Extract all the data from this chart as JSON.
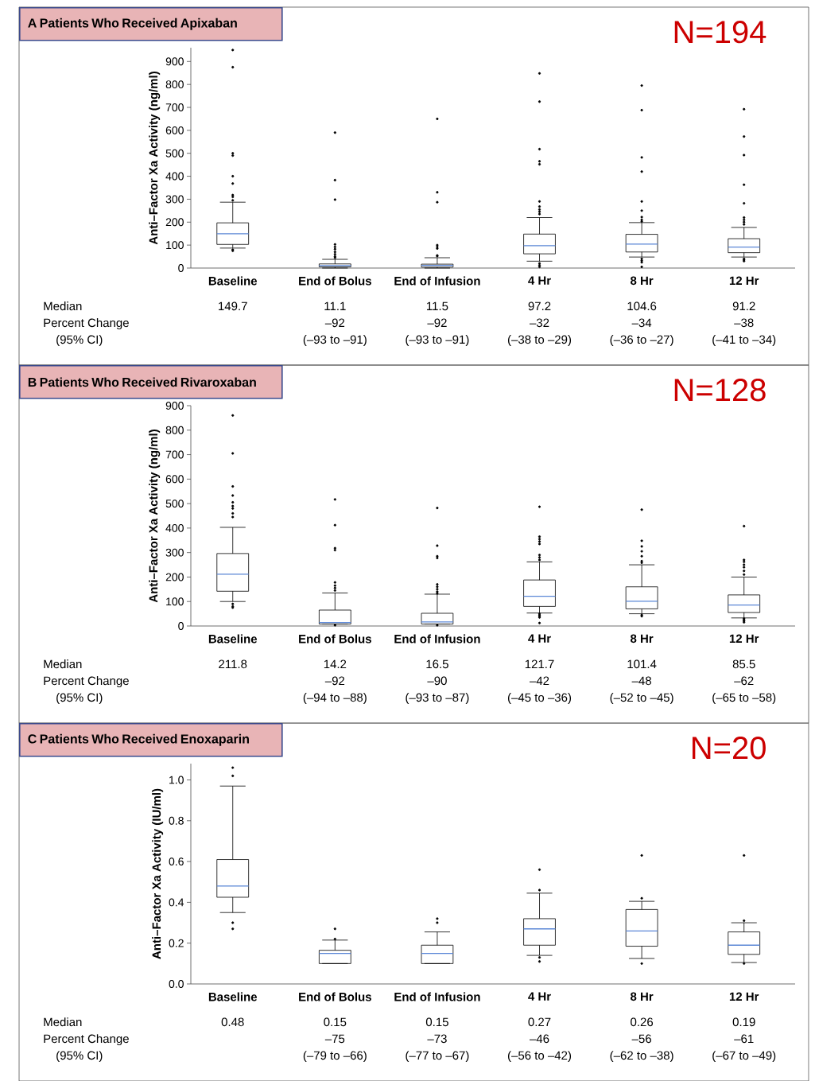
{
  "chart_data": [
    {
      "type": "box",
      "title": "A  Patients Who Received Apixaban",
      "ylabel": "Anti–Factor Xa Activity (ng/ml)",
      "categories": [
        "Baseline",
        "End of Bolus",
        "End of Infusion",
        "4 Hr",
        "8 Hr",
        "12 Hr"
      ],
      "ylim": [
        0,
        960
      ],
      "yticks": [
        0,
        100,
        200,
        300,
        400,
        500,
        600,
        700,
        800,
        900
      ],
      "marker": "circle",
      "series": [
        {
          "color": "#000000",
          "boxes": [
            {
              "low": 87,
              "q1": 103,
              "median": 149.7,
              "q3": 197,
              "high": 287,
              "outliers": [
                950,
                875,
                500,
                490,
                400,
                368,
                318,
                310,
                295,
                80,
                75
              ]
            },
            {
              "low": 0,
              "q1": 5,
              "median": 11.1,
              "q3": 18,
              "high": 38,
              "outliers": [
                590,
                383,
                298,
                103,
                92,
                82,
                70,
                60,
                50,
                45
              ]
            },
            {
              "low": 0,
              "q1": 4,
              "median": 11.5,
              "q3": 17,
              "high": 45,
              "outliers": [
                650,
                330,
                287,
                100,
                92,
                85,
                55,
                52
              ]
            },
            {
              "low": 30,
              "q1": 62,
              "median": 97.2,
              "q3": 148,
              "high": 220,
              "outliers": [
                848,
                725,
                518,
                465,
                452,
                290,
                268,
                255,
                245,
                235,
                20,
                12,
                5
              ]
            },
            {
              "low": 48,
              "q1": 70,
              "median": 104.6,
              "q3": 147,
              "high": 198,
              "outliers": [
                795,
                688,
                482,
                420,
                290,
                250,
                222,
                210,
                203,
                40,
                32,
                25,
                5
              ]
            },
            {
              "low": 48,
              "q1": 67,
              "median": 91.2,
              "q3": 128,
              "high": 177,
              "outliers": [
                692,
                573,
                492,
                363,
                282,
                220,
                210,
                200,
                190,
                40,
                35,
                30
              ]
            }
          ]
        }
      ],
      "annotations": [
        "N=194",
        "Median",
        "Percent Change",
        "(95% CI)",
        "149.7",
        "11.1",
        "–92",
        "(–93 to –91)",
        "11.5",
        "–92",
        "(–93 to –91)",
        "97.2",
        "–32",
        "(–38 to –29)",
        "104.6",
        "–34",
        "(–36 to –27)",
        "91.2",
        "–38",
        "(–41 to –34)"
      ]
    },
    {
      "type": "box",
      "title": "B  Patients Who Received Rivaroxaban",
      "ylabel": "Anti–Factor Xa Activity (ng/ml)",
      "categories": [
        "Baseline",
        "End of Bolus",
        "End of Infusion",
        "4 Hr",
        "8 Hr",
        "12 Hr"
      ],
      "ylim": [
        0,
        900
      ],
      "yticks": [
        0,
        100,
        200,
        300,
        400,
        500,
        600,
        700,
        800,
        900
      ],
      "marker": "circle",
      "series": [
        {
          "color": "#000000",
          "boxes": [
            {
              "low": 100,
              "q1": 142,
              "median": 211.8,
              "q3": 296,
              "high": 403,
              "outliers": [
                860,
                705,
                570,
                533,
                505,
                490,
                480,
                460,
                445,
                90,
                80,
                75
              ]
            },
            {
              "low": 8,
              "q1": 8,
              "median": 14.2,
              "q3": 65,
              "high": 135,
              "outliers": [
                517,
                412,
                318,
                310,
                178,
                165,
                155,
                145,
                3
              ]
            },
            {
              "low": 8,
              "q1": 8,
              "median": 16.5,
              "q3": 52,
              "high": 130,
              "outliers": [
                482,
                328,
                285,
                278,
                170,
                160,
                150,
                140,
                133,
                3
              ]
            },
            {
              "low": 53,
              "q1": 80,
              "median": 121.7,
              "q3": 188,
              "high": 262,
              "outliers": [
                487,
                365,
                355,
                345,
                335,
                290,
                280,
                270,
                50,
                45,
                40,
                35,
                12
              ]
            },
            {
              "low": 50,
              "q1": 70,
              "median": 101.4,
              "q3": 160,
              "high": 250,
              "outliers": [
                475,
                348,
                325,
                305,
                285,
                265,
                258,
                45,
                40
              ]
            },
            {
              "low": 33,
              "q1": 55,
              "median": 85.5,
              "q3": 127,
              "high": 200,
              "outliers": [
                408,
                270,
                262,
                250,
                240,
                225,
                210,
                30,
                25,
                20,
                15
              ]
            }
          ]
        }
      ],
      "annotations": [
        "N=128",
        "Median",
        "Percent Change",
        "(95% CI)",
        "211.8",
        "14.2",
        "–92",
        "(–94 to –88)",
        "16.5",
        "–90",
        "(–93 to –87)",
        "121.7",
        "–42",
        "(–45 to –36)",
        "101.4",
        "–48",
        "(–52 to –45)",
        "85.5",
        "–62",
        "(–65 to –58)"
      ]
    },
    {
      "type": "box",
      "title": "C  Patients Who Received Enoxaparin",
      "ylabel": "Anti–Factor Xa Activity (IU/ml)",
      "categories": [
        "Baseline",
        "End of Bolus",
        "End of Infusion",
        "4 Hr",
        "8 Hr",
        "12 Hr"
      ],
      "ylim": [
        0,
        1.08
      ],
      "yticks": [
        {
          "value": 0,
          "label": "0.0"
        },
        {
          "value": 0.2,
          "label": "0.2"
        },
        {
          "value": 0.4,
          "label": "0.4"
        },
        {
          "value": 0.6,
          "label": "0.6"
        },
        {
          "value": 0.8,
          "label": "0.8"
        },
        {
          "value": 1.0,
          "label": "1.0"
        }
      ],
      "marker": "circle",
      "series": [
        {
          "color": "#000000",
          "boxes": [
            {
              "low": 0.35,
              "q1": 0.425,
              "median": 0.48,
              "q3": 0.61,
              "high": 0.97,
              "outliers": [
                1.06,
                1.02,
                0.3,
                0.27
              ]
            },
            {
              "low": 0.1,
              "q1": 0.1,
              "median": 0.15,
              "q3": 0.165,
              "high": 0.215,
              "outliers": [
                0.27,
                0.22
              ]
            },
            {
              "low": 0.1,
              "q1": 0.1,
              "median": 0.15,
              "q3": 0.19,
              "high": 0.255,
              "outliers": [
                0.32,
                0.3
              ]
            },
            {
              "low": 0.14,
              "q1": 0.19,
              "median": 0.27,
              "q3": 0.32,
              "high": 0.445,
              "outliers": [
                0.56,
                0.46,
                0.13,
                0.11
              ]
            },
            {
              "low": 0.125,
              "q1": 0.185,
              "median": 0.26,
              "q3": 0.365,
              "high": 0.405,
              "outliers": [
                0.63,
                0.42,
                0.1
              ]
            },
            {
              "low": 0.105,
              "q1": 0.145,
              "median": 0.19,
              "q3": 0.255,
              "high": 0.3,
              "outliers": [
                0.63,
                0.31,
                0.1
              ]
            }
          ]
        }
      ],
      "annotations": [
        "N=20",
        "Median",
        "Percent Change",
        "(95% CI)",
        "0.48",
        "0.15",
        "–75",
        "(–79 to –66)",
        "0.15",
        "–73",
        "(–77 to –67)",
        "0.27",
        "–46",
        "(–56 to –42)",
        "0.26",
        "–56",
        "(–62 to –38)",
        "0.19",
        "–61",
        "(–67 to –49)"
      ]
    }
  ]
}
